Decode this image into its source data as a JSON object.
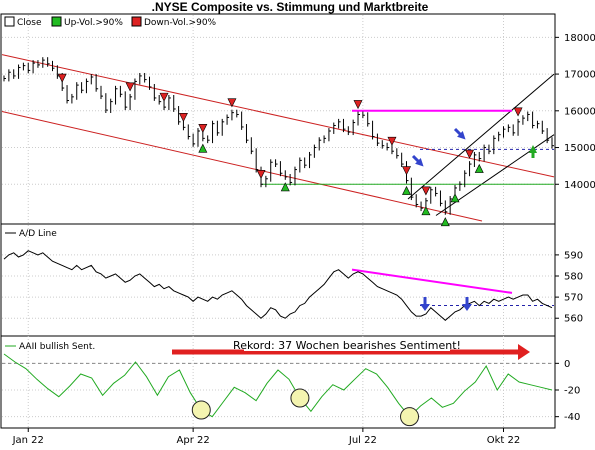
{
  "chart_data": [
    {
      "type": "line",
      "title": ".NYSE Composite vs. Stimmung und Marktbreite",
      "legend": [
        {
          "label": "Close",
          "color": "#000000"
        },
        {
          "label": "Up-Vol.>90%",
          "color": "#22bb22"
        },
        {
          "label": "Down-Vol.>90%",
          "color": "#dd2222"
        }
      ],
      "y_ticks": [
        14000,
        15000,
        16000,
        17000,
        18000
      ],
      "ylim": [
        13000,
        18200
      ],
      "series": [
        {
          "values": [
            16880,
            17050,
            16950,
            17180,
            17230,
            17100,
            17300,
            17250,
            17380,
            17280,
            17160,
            16950,
            16620,
            16280,
            16380,
            16700,
            16560,
            16800,
            16920,
            16600,
            16400,
            16020,
            16250,
            16600,
            16450,
            16100,
            16380,
            16800,
            16950,
            16850,
            16650,
            16350,
            16250,
            16100,
            16350,
            16050,
            15700,
            15550,
            15300,
            15100,
            15450,
            15250,
            15200,
            15650,
            15400,
            15700,
            15820,
            15950,
            15900,
            15560,
            15200,
            14900,
            14400,
            14000,
            14150,
            14600,
            14550,
            14300,
            14200,
            14050,
            14400,
            14650,
            14520,
            14800,
            15000,
            15200,
            15250,
            15450,
            15600,
            15700,
            15500,
            15420,
            15680,
            15900,
            15880,
            15650,
            15300,
            15120,
            15050,
            15000,
            14900,
            14780,
            14550,
            14100,
            13650,
            13450,
            13350,
            13550,
            13850,
            13750,
            13480,
            13250,
            13600,
            13900,
            14000,
            14300,
            14550,
            14800,
            14700,
            15000,
            14900,
            15250,
            15350,
            15500,
            15550,
            15400,
            15700,
            15800,
            15900,
            15600,
            15650,
            15450,
            15200,
            15050
          ]
        }
      ],
      "markers_up": [
        41,
        58,
        83,
        87,
        91,
        93,
        98
      ],
      "markers_down": [
        12,
        26,
        33,
        37,
        41,
        47,
        53,
        73,
        80,
        83,
        87,
        96,
        106
      ],
      "horizontal_lines": [
        {
          "value": 16000,
          "color": "#ff00ff",
          "style": "solid"
        },
        {
          "value": 14000,
          "color": "#22aa22",
          "style": "solid"
        },
        {
          "value": 14950,
          "color": "#2222aa",
          "style": "dashed"
        }
      ]
    },
    {
      "type": "line",
      "legend": [
        {
          "label": "A/D Line",
          "color": "#000000"
        }
      ],
      "y_ticks": [
        560,
        570,
        580,
        590
      ],
      "ylim": [
        553,
        598
      ],
      "series": [
        {
          "values": [
            588,
            590,
            591,
            589,
            590,
            592,
            591,
            590,
            591,
            589,
            587,
            586,
            585,
            584,
            583,
            585,
            583,
            584,
            585,
            582,
            581,
            579,
            580,
            581,
            579,
            577,
            578,
            580,
            581,
            579,
            577,
            575,
            576,
            574,
            575,
            573,
            572,
            571,
            570,
            568,
            570,
            569,
            568,
            570,
            569,
            571,
            572,
            573,
            571,
            569,
            566,
            564,
            562,
            560,
            562,
            565,
            564,
            561,
            560,
            562,
            563,
            566,
            567,
            570,
            572,
            574,
            576,
            579,
            582,
            583,
            581,
            579,
            581,
            582,
            581,
            579,
            577,
            575,
            574,
            573,
            572,
            571,
            569,
            566,
            563,
            561,
            561,
            562,
            565,
            563,
            561,
            559,
            561,
            563,
            564,
            566,
            567,
            568,
            566,
            568,
            567,
            569,
            568,
            569,
            570,
            569,
            570,
            571,
            571,
            568,
            569,
            567,
            566,
            565
          ]
        }
      ],
      "horizontal_lines": [
        {
          "value": 566,
          "color": "#2222aa",
          "style": "dashed"
        }
      ]
    },
    {
      "type": "line",
      "legend": [
        {
          "label": "AAII bullish Sent.",
          "color": "#22aa22"
        }
      ],
      "annotation": "Rekord: 37 Wochen bearishes Sentiment!",
      "y_ticks": [
        -40,
        -20,
        0
      ],
      "ylim": [
        -47,
        10
      ],
      "x_ticks": [
        "Jan 22",
        "Apr 22",
        "Jul 22",
        "Okt 22"
      ],
      "x_tick_index": [
        5,
        39,
        74,
        103
      ],
      "series": [
        {
          "values": [
            7,
            1,
            -4,
            -12,
            -19,
            -25,
            -17,
            -8,
            -11,
            -24,
            -15,
            -9,
            1,
            -10,
            -24,
            -10,
            -5,
            -22,
            -35,
            -40,
            -29,
            -18,
            -22,
            -28,
            -15,
            -5,
            -12,
            -26,
            -36,
            -25,
            -16,
            -20,
            -12,
            -4,
            -8,
            -18,
            -30,
            -40,
            -32,
            -26,
            -33,
            -30,
            -21,
            -14,
            -2,
            -20,
            -8,
            -14,
            -16,
            -18,
            -20
          ]
        }
      ],
      "horizontal_lines": [
        {
          "value": 0,
          "color": "#888888",
          "style": "dashed"
        }
      ]
    }
  ]
}
